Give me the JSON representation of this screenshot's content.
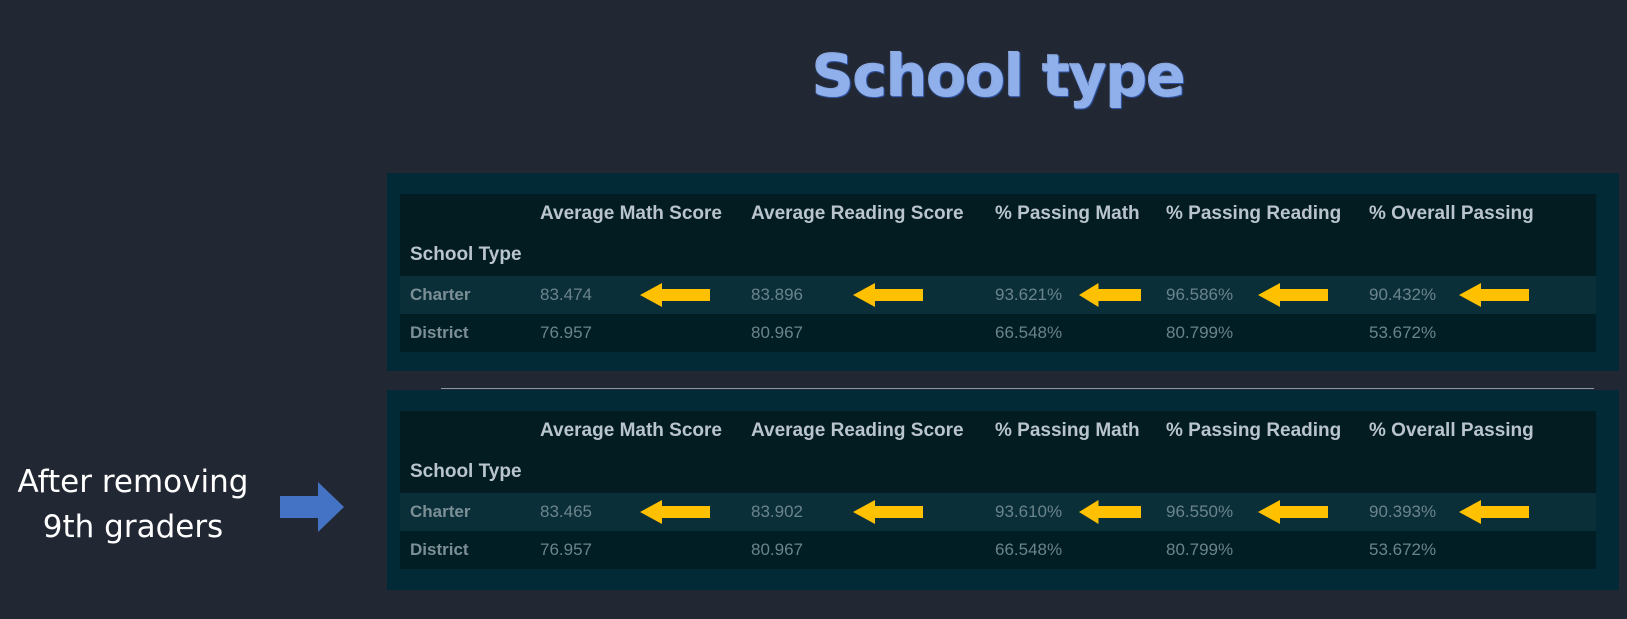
{
  "title": "School type",
  "tables": [
    {
      "index_name": "School Type",
      "columns": [
        "Average Math Score",
        "Average Reading Score",
        "% Passing Math",
        "% Passing Reading",
        "% Overall Passing"
      ],
      "rows": [
        {
          "label": "Charter",
          "values": [
            "83.474",
            "83.896",
            "93.621%",
            "96.586%",
            "90.432%"
          ]
        },
        {
          "label": "District",
          "values": [
            "76.957",
            "80.967",
            "66.548%",
            "80.799%",
            "53.672%"
          ]
        }
      ]
    },
    {
      "index_name": "School Type",
      "columns": [
        "Average Math Score",
        "Average Reading Score",
        "% Passing Math",
        "% Passing Reading",
        "% Overall Passing"
      ],
      "rows": [
        {
          "label": "Charter",
          "values": [
            "83.465",
            "83.902",
            "93.610%",
            "96.550%",
            "90.393%"
          ]
        },
        {
          "label": "District",
          "values": [
            "76.957",
            "80.967",
            "66.548%",
            "80.799%",
            "53.672%"
          ]
        }
      ]
    }
  ],
  "annotation": {
    "line1": "After removing",
    "line2": "9th graders"
  },
  "colors": {
    "background": "#222833",
    "panel": "#012a36",
    "highlight_arrow": "#ffc000",
    "pointer_arrow": "#4472c4",
    "title": "#8fb0ea"
  },
  "icons": [
    "yellow-left-arrow-icon",
    "blue-right-arrow-icon"
  ]
}
